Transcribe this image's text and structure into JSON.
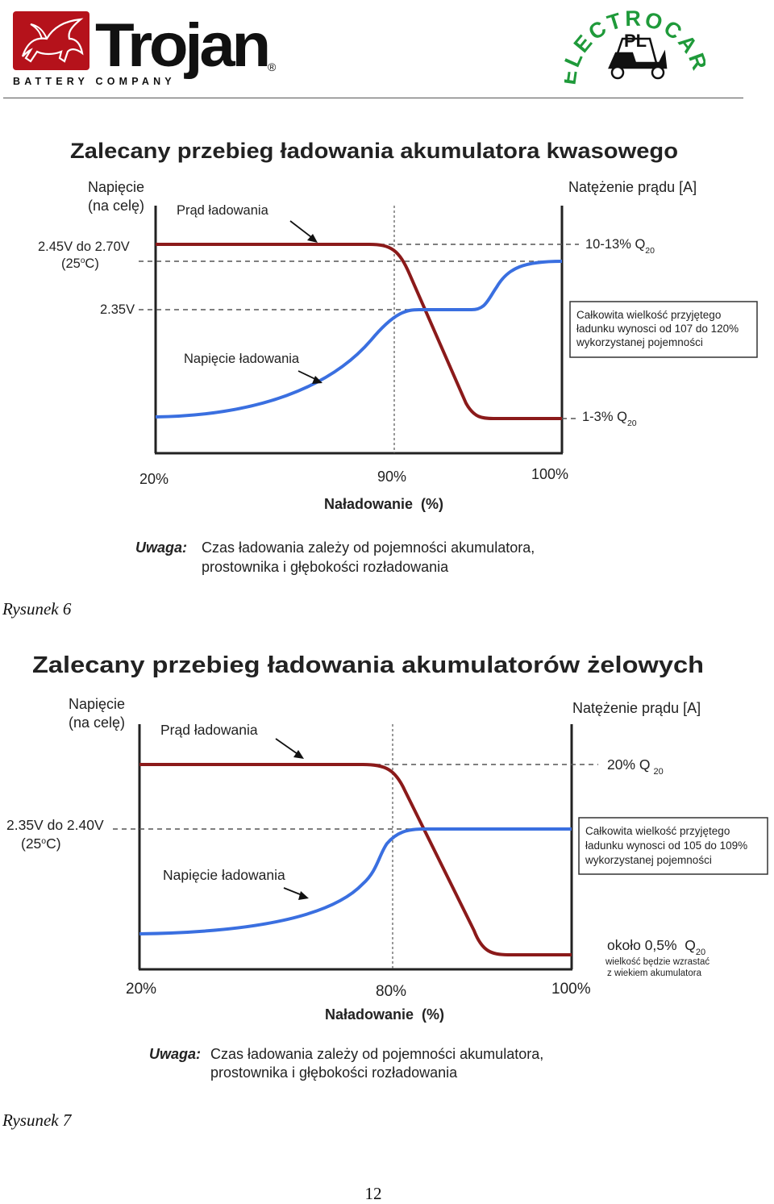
{
  "header": {
    "trojan_logo_text": "Trojan",
    "trojan_subtitle": "BATTERY COMPANY",
    "trojan_registered": "®",
    "electrocar_logo_text": "ELECTROCAR",
    "electrocar_logo_pl": "PL"
  },
  "colors": {
    "current_curve": "#8b1a1a",
    "voltage_curve": "#3a6fe0",
    "logo_red": "#b5121b",
    "logo_green": "#1f9a3a"
  },
  "figure6": {
    "title": "Zalecany przebieg ładowania akumulatora kwasowego",
    "left_axis_label_1": "Napięcie",
    "left_axis_label_2": "(na celę)",
    "right_axis_label": "Natężenie prądu [A]",
    "current_label": "Prąd ładowania",
    "voltage_label": "Napięcie ładowania",
    "v_high_1": "2.45V do 2.70V",
    "v_high_2": "(25",
    "v_high_2_deg": "o",
    "v_high_2_end": "C)",
    "v_mid": "2.35V",
    "i_high": "10-13% Q",
    "i_high_sub": "20",
    "i_low": "1-3% Q",
    "i_low_sub": "20",
    "info_1": "Całkowita wielkość przyjętego",
    "info_2": "ładunku wynosci od 107 do 120%",
    "info_3": "wykorzystanej pojemności",
    "x_tick_1": "20%",
    "x_tick_2": "90%",
    "x_tick_3": "100%",
    "x_axis_label": "Naładowanie  (%)",
    "note_label": "Uwaga:",
    "note_1": "Czas ładowania zależy od pojemności akumulatora,",
    "note_2": "prostownika i głębokości rozładowania",
    "caption": "Rysunek 6"
  },
  "figure7": {
    "title": "Zalecany przebieg ładowania akumulatorów żelowych",
    "left_axis_label_1": "Napięcie",
    "left_axis_label_2": "(na celę)",
    "right_axis_label": "Natężenie prądu [A]",
    "current_label": "Prąd ładowania",
    "voltage_label": "Napięcie ładowania",
    "v_high_1": "2.35V do 2.40V",
    "v_high_2": "(25",
    "v_high_2_deg": "o",
    "v_high_2_end": "C)",
    "i_high": "20% Q",
    "i_high_sub": "20",
    "i_low": "około 0,5%  Q",
    "i_low_sub": "20",
    "i_low_note_1": "wielkość będzie wzrastać",
    "i_low_note_2": "z wiekiem akumulatora",
    "info_1": "Całkowita wielkość przyjętego",
    "info_2": "ładunku wynosci od 105 do 109%",
    "info_3": "wykorzystanej pojemności",
    "x_tick_1": "20%",
    "x_tick_2": "80%",
    "x_tick_3": "100%",
    "x_axis_label": "Naładowanie  (%)",
    "note_label": "Uwaga:",
    "note_1": "Czas ładowania zależy od pojemności akumulatora,",
    "note_2": "prostownika i głębokości rozładowania",
    "caption": "Rysunek 7"
  },
  "page_number": "12"
}
